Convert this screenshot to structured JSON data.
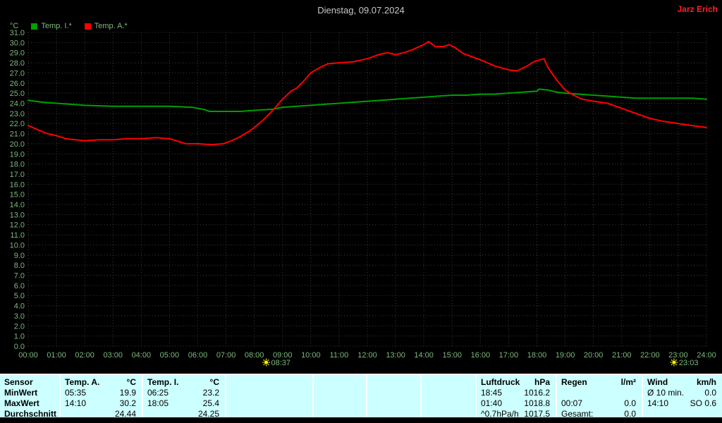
{
  "topbar": {
    "title": "Dienstag, 09.07.2024",
    "user": "Jarz Erich"
  },
  "legend": {
    "unit": "°C",
    "items": [
      {
        "label": "Temp. I.*",
        "color": "#00a000"
      },
      {
        "label": "Temp. A.*",
        "color": "#ff0000"
      }
    ]
  },
  "colors": {
    "axis_text": "#7cb87c",
    "grid": "#3c3c3c",
    "marker": "#ffff00",
    "background": "#000000",
    "table_bg": "#ccffff"
  },
  "chart_data": {
    "type": "line",
    "title": "Dienstag, 09.07.2024",
    "y_unit": "°C",
    "xlim": [
      0,
      24
    ],
    "ylim": [
      0,
      31
    ],
    "y_step": 1,
    "grid": true,
    "x_ticks": [
      "00:00",
      "01:00",
      "02:00",
      "03:00",
      "04:00",
      "05:00",
      "06:00",
      "07:00",
      "08:00",
      "09:00",
      "10:00",
      "11:00",
      "12:00",
      "13:00",
      "14:00",
      "15:00",
      "16:00",
      "17:00",
      "18:00",
      "19:00",
      "20:00",
      "21:00",
      "22:00",
      "23:00",
      "24:00"
    ],
    "series": [
      {
        "name": "Temp. I.*",
        "color": "#00a000",
        "points": [
          [
            0,
            24.3
          ],
          [
            0.5,
            24.1
          ],
          [
            1,
            24.0
          ],
          [
            1.5,
            23.9
          ],
          [
            2,
            23.8
          ],
          [
            3,
            23.7
          ],
          [
            4,
            23.7
          ],
          [
            5,
            23.7
          ],
          [
            5.8,
            23.6
          ],
          [
            6.2,
            23.4
          ],
          [
            6.42,
            23.2
          ],
          [
            7,
            23.2
          ],
          [
            7.5,
            23.2
          ],
          [
            8,
            23.3
          ],
          [
            8.62,
            23.4
          ],
          [
            9,
            23.6
          ],
          [
            9.5,
            23.7
          ],
          [
            10,
            23.8
          ],
          [
            10.5,
            23.9
          ],
          [
            11,
            24.0
          ],
          [
            11.5,
            24.1
          ],
          [
            12,
            24.2
          ],
          [
            12.5,
            24.3
          ],
          [
            13,
            24.4
          ],
          [
            13.5,
            24.5
          ],
          [
            14,
            24.6
          ],
          [
            14.5,
            24.7
          ],
          [
            15,
            24.8
          ],
          [
            15.5,
            24.8
          ],
          [
            16,
            24.9
          ],
          [
            16.5,
            24.9
          ],
          [
            17,
            25.0
          ],
          [
            17.5,
            25.1
          ],
          [
            18,
            25.2
          ],
          [
            18.08,
            25.4
          ],
          [
            18.4,
            25.3
          ],
          [
            18.7,
            25.1
          ],
          [
            19,
            25.0
          ],
          [
            19.5,
            24.9
          ],
          [
            20,
            24.8
          ],
          [
            20.5,
            24.7
          ],
          [
            21,
            24.6
          ],
          [
            21.5,
            24.5
          ],
          [
            22,
            24.5
          ],
          [
            23,
            24.5
          ],
          [
            23.5,
            24.5
          ],
          [
            24,
            24.4
          ]
        ]
      },
      {
        "name": "Temp. A.*",
        "color": "#ff0000",
        "points": [
          [
            0,
            21.8
          ],
          [
            0.33,
            21.4
          ],
          [
            0.67,
            21.0
          ],
          [
            1,
            20.8
          ],
          [
            1.33,
            20.5
          ],
          [
            1.67,
            20.4
          ],
          [
            2,
            20.3
          ],
          [
            2.5,
            20.4
          ],
          [
            3,
            20.4
          ],
          [
            3.5,
            20.5
          ],
          [
            4,
            20.5
          ],
          [
            4.5,
            20.6
          ],
          [
            5,
            20.5
          ],
          [
            5.35,
            20.2
          ],
          [
            5.58,
            20.0
          ],
          [
            6,
            20.0
          ],
          [
            6.5,
            19.9
          ],
          [
            6.9,
            20.0
          ],
          [
            7.2,
            20.3
          ],
          [
            7.5,
            20.7
          ],
          [
            7.8,
            21.2
          ],
          [
            8,
            21.6
          ],
          [
            8.3,
            22.3
          ],
          [
            8.62,
            23.2
          ],
          [
            9,
            24.4
          ],
          [
            9.3,
            25.2
          ],
          [
            9.5,
            25.5
          ],
          [
            9.75,
            26.2
          ],
          [
            10,
            27.0
          ],
          [
            10.3,
            27.5
          ],
          [
            10.6,
            27.9
          ],
          [
            11,
            28.0
          ],
          [
            11.5,
            28.1
          ],
          [
            12,
            28.4
          ],
          [
            12.4,
            28.8
          ],
          [
            12.7,
            29.0
          ],
          [
            13,
            28.8
          ],
          [
            13.3,
            29.0
          ],
          [
            13.6,
            29.3
          ],
          [
            14,
            29.8
          ],
          [
            14.17,
            30.1
          ],
          [
            14.4,
            29.6
          ],
          [
            14.7,
            29.6
          ],
          [
            14.9,
            29.8
          ],
          [
            15.1,
            29.5
          ],
          [
            15.4,
            28.9
          ],
          [
            15.7,
            28.6
          ],
          [
            16,
            28.3
          ],
          [
            16.5,
            27.7
          ],
          [
            17,
            27.3
          ],
          [
            17.3,
            27.2
          ],
          [
            17.6,
            27.6
          ],
          [
            17.9,
            28.1
          ],
          [
            18.1,
            28.3
          ],
          [
            18.25,
            28.4
          ],
          [
            18.4,
            27.5
          ],
          [
            18.7,
            26.3
          ],
          [
            19,
            25.3
          ],
          [
            19.3,
            24.8
          ],
          [
            19.6,
            24.4
          ],
          [
            20,
            24.2
          ],
          [
            20.5,
            24.0
          ],
          [
            20.8,
            23.7
          ],
          [
            21,
            23.5
          ],
          [
            21.5,
            23.0
          ],
          [
            22,
            22.5
          ],
          [
            22.5,
            22.2
          ],
          [
            23,
            22.0
          ],
          [
            23.5,
            21.8
          ],
          [
            24,
            21.6
          ]
        ]
      }
    ],
    "markers": [
      {
        "x": 8.62,
        "label": "08:37",
        "icon": "sun-icon"
      },
      {
        "x": 23.05,
        "label": "23:03",
        "icon": "sun-icon"
      }
    ]
  },
  "stats": {
    "row_labels": [
      "Sensor",
      "MinWert",
      "MaxWert",
      "Durchschnitt"
    ],
    "columns": [
      {
        "header": "Temp. A.",
        "unit": "°C",
        "min_t": "05:35",
        "min_v": "19.9",
        "max_t": "14:10",
        "max_v": "30.2",
        "avg_l": "",
        "avg_v": "24.44"
      },
      {
        "header": "Temp. I.",
        "unit": "°C",
        "min_t": "06:25",
        "min_v": "23.2",
        "max_t": "18:05",
        "max_v": "25.4",
        "avg_l": "",
        "avg_v": "24.25"
      },
      {
        "header": "Luftdruck",
        "unit": "hPa",
        "min_t": "18:45",
        "min_v": "1016.2",
        "max_t": "01:40",
        "max_v": "1018.8",
        "avg_l": "^0.7hPa/h",
        "avg_v": "1017.5"
      },
      {
        "header": "Regen",
        "unit": "l/m²",
        "min_t": "",
        "min_v": "",
        "max_t": "00:07",
        "max_v": "0.0",
        "avg_l": "Gesamt:",
        "avg_v": "0.0"
      },
      {
        "header": "Wind",
        "unit": "km/h",
        "min_t": "Ø 10 min.",
        "min_v": "0.0",
        "max_t": "14:10",
        "max_v": "SO 0.6",
        "avg_l": "",
        "avg_v": ""
      }
    ]
  }
}
